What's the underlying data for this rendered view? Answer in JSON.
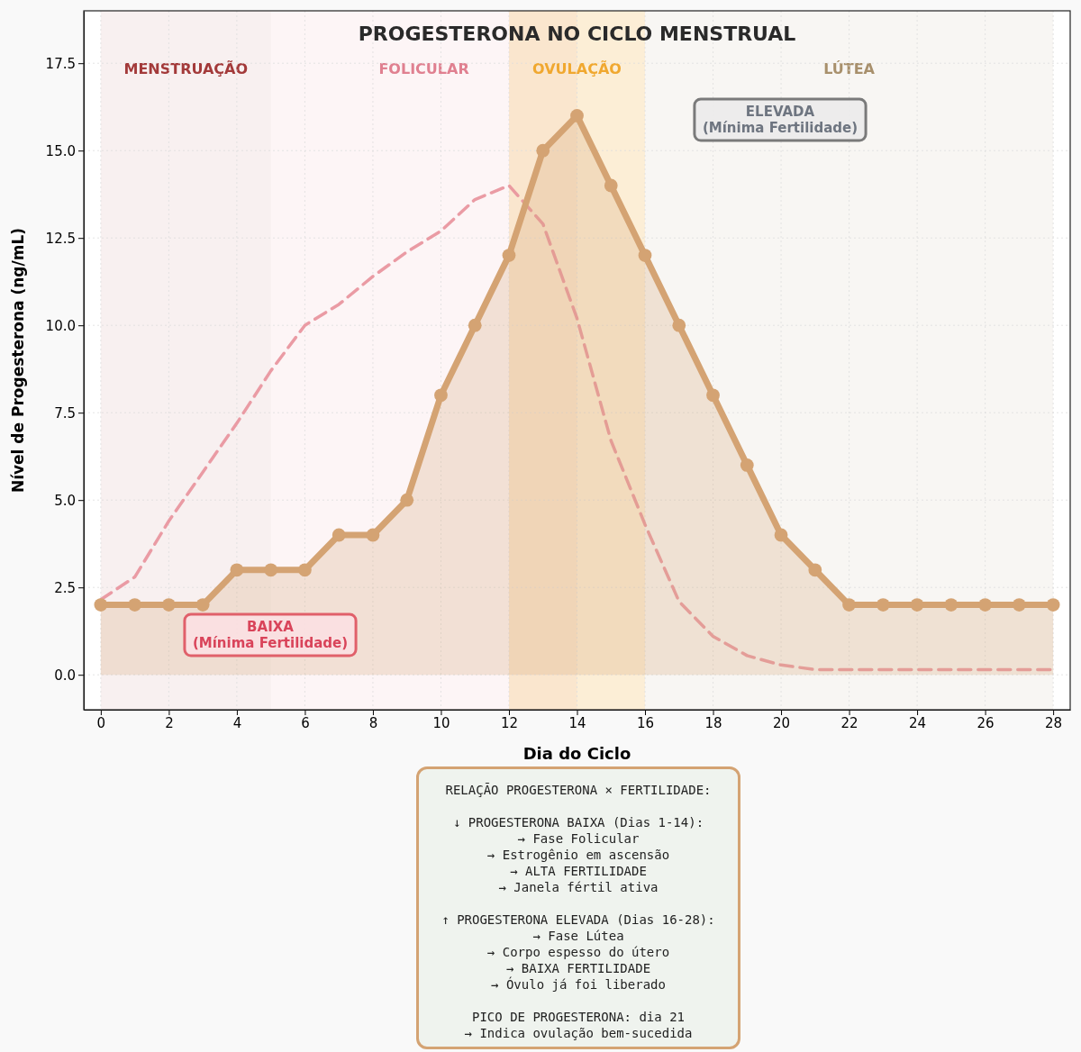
{
  "chart_data": {
    "type": "line",
    "title": "PROGESTERONA NO CICLO MENSTRUAL",
    "xlabel": "Dia do Ciclo",
    "ylabel": "Nível de Progesterona (ng/mL)",
    "x": [
      0,
      1,
      2,
      3,
      4,
      5,
      6,
      7,
      8,
      9,
      10,
      11,
      12,
      13,
      14,
      15,
      16,
      17,
      18,
      19,
      20,
      21,
      22,
      23,
      24,
      25,
      26,
      27,
      28
    ],
    "series": [
      {
        "type": "area",
        "color": "#d4a373",
        "marker": "circle",
        "values": [
          2,
          2,
          2,
          2,
          3,
          3,
          3,
          4,
          4,
          5,
          8,
          10,
          12,
          15,
          16,
          14,
          12,
          10,
          8,
          6,
          4,
          3,
          2,
          2,
          2,
          2,
          2,
          2,
          2
        ]
      },
      {
        "color": "#e8919b",
        "marker": "none",
        "line_style": "dashed",
        "values": [
          2.15,
          2.8,
          4.4,
          5.8,
          7.2,
          8.7,
          10,
          10.6,
          11.4,
          12.1,
          12.7,
          13.6,
          14,
          12.9,
          10.2,
          6.7,
          4.3,
          2.1,
          1.1,
          0.55,
          0.28,
          0.15,
          0.15,
          0.15,
          0.15,
          0.15,
          0.15,
          0.15,
          0.15
        ]
      }
    ],
    "xlim": [
      -0.5,
      28.5
    ],
    "ylim": [
      -1,
      19
    ],
    "xticks": [
      0,
      2,
      4,
      6,
      8,
      10,
      12,
      14,
      16,
      18,
      20,
      22,
      24,
      26,
      28
    ],
    "yticks": [
      {
        "value": 0,
        "label": "0.0"
      },
      {
        "value": 2.5,
        "label": "2.5"
      },
      {
        "value": 5,
        "label": "5.0"
      },
      {
        "value": 7.5,
        "label": "7.5"
      },
      {
        "value": 10,
        "label": "10.0"
      },
      {
        "value": 12.5,
        "label": "12.5"
      },
      {
        "value": 15,
        "label": "15.0"
      },
      {
        "value": 17.5,
        "label": "17.5"
      }
    ],
    "grid": true,
    "bands": [
      {
        "axis": "x",
        "from": 0,
        "to": 5,
        "label": "MENSTRUAÇÃO",
        "color": "#a33a3a"
      },
      {
        "axis": "x",
        "from": 5,
        "to": 14,
        "label": "FOLICULAR",
        "color": "#e08090"
      },
      {
        "axis": "x",
        "from": 12,
        "to": 16,
        "label": "OVULAÇÃO",
        "color": "#f0a830"
      },
      {
        "axis": "x",
        "from": 16,
        "to": 28,
        "label": "LÚTEA",
        "color": "#a8906c"
      }
    ],
    "annotations": [
      "BAIXA\n(Mínima Fertilidade)",
      "ELEVADA\n(Mínima Fertilidade)",
      "RELAÇÃO PROGESTERONA × FERTILIDADE:\n\n↓ PROGESTERONA BAIXA (Dias 1-14):\n→ Fase Folicular\n→ Estrogênio em ascensão\n→ ALTA FERTILIDADE\n→ Janela fértil ativa\n\n↑ PROGESTERONA ELEVADA (Dias 16-28):\n→ Fase Lútea\n→ Corpo espesso do útero\n→ BAIXA FERTILIDADE\n→ Óvulo já foi liberado\n\nPICO DE PROGESTERONA: dia 21\n→ Indica ovulação bem-sucedida"
    ]
  }
}
